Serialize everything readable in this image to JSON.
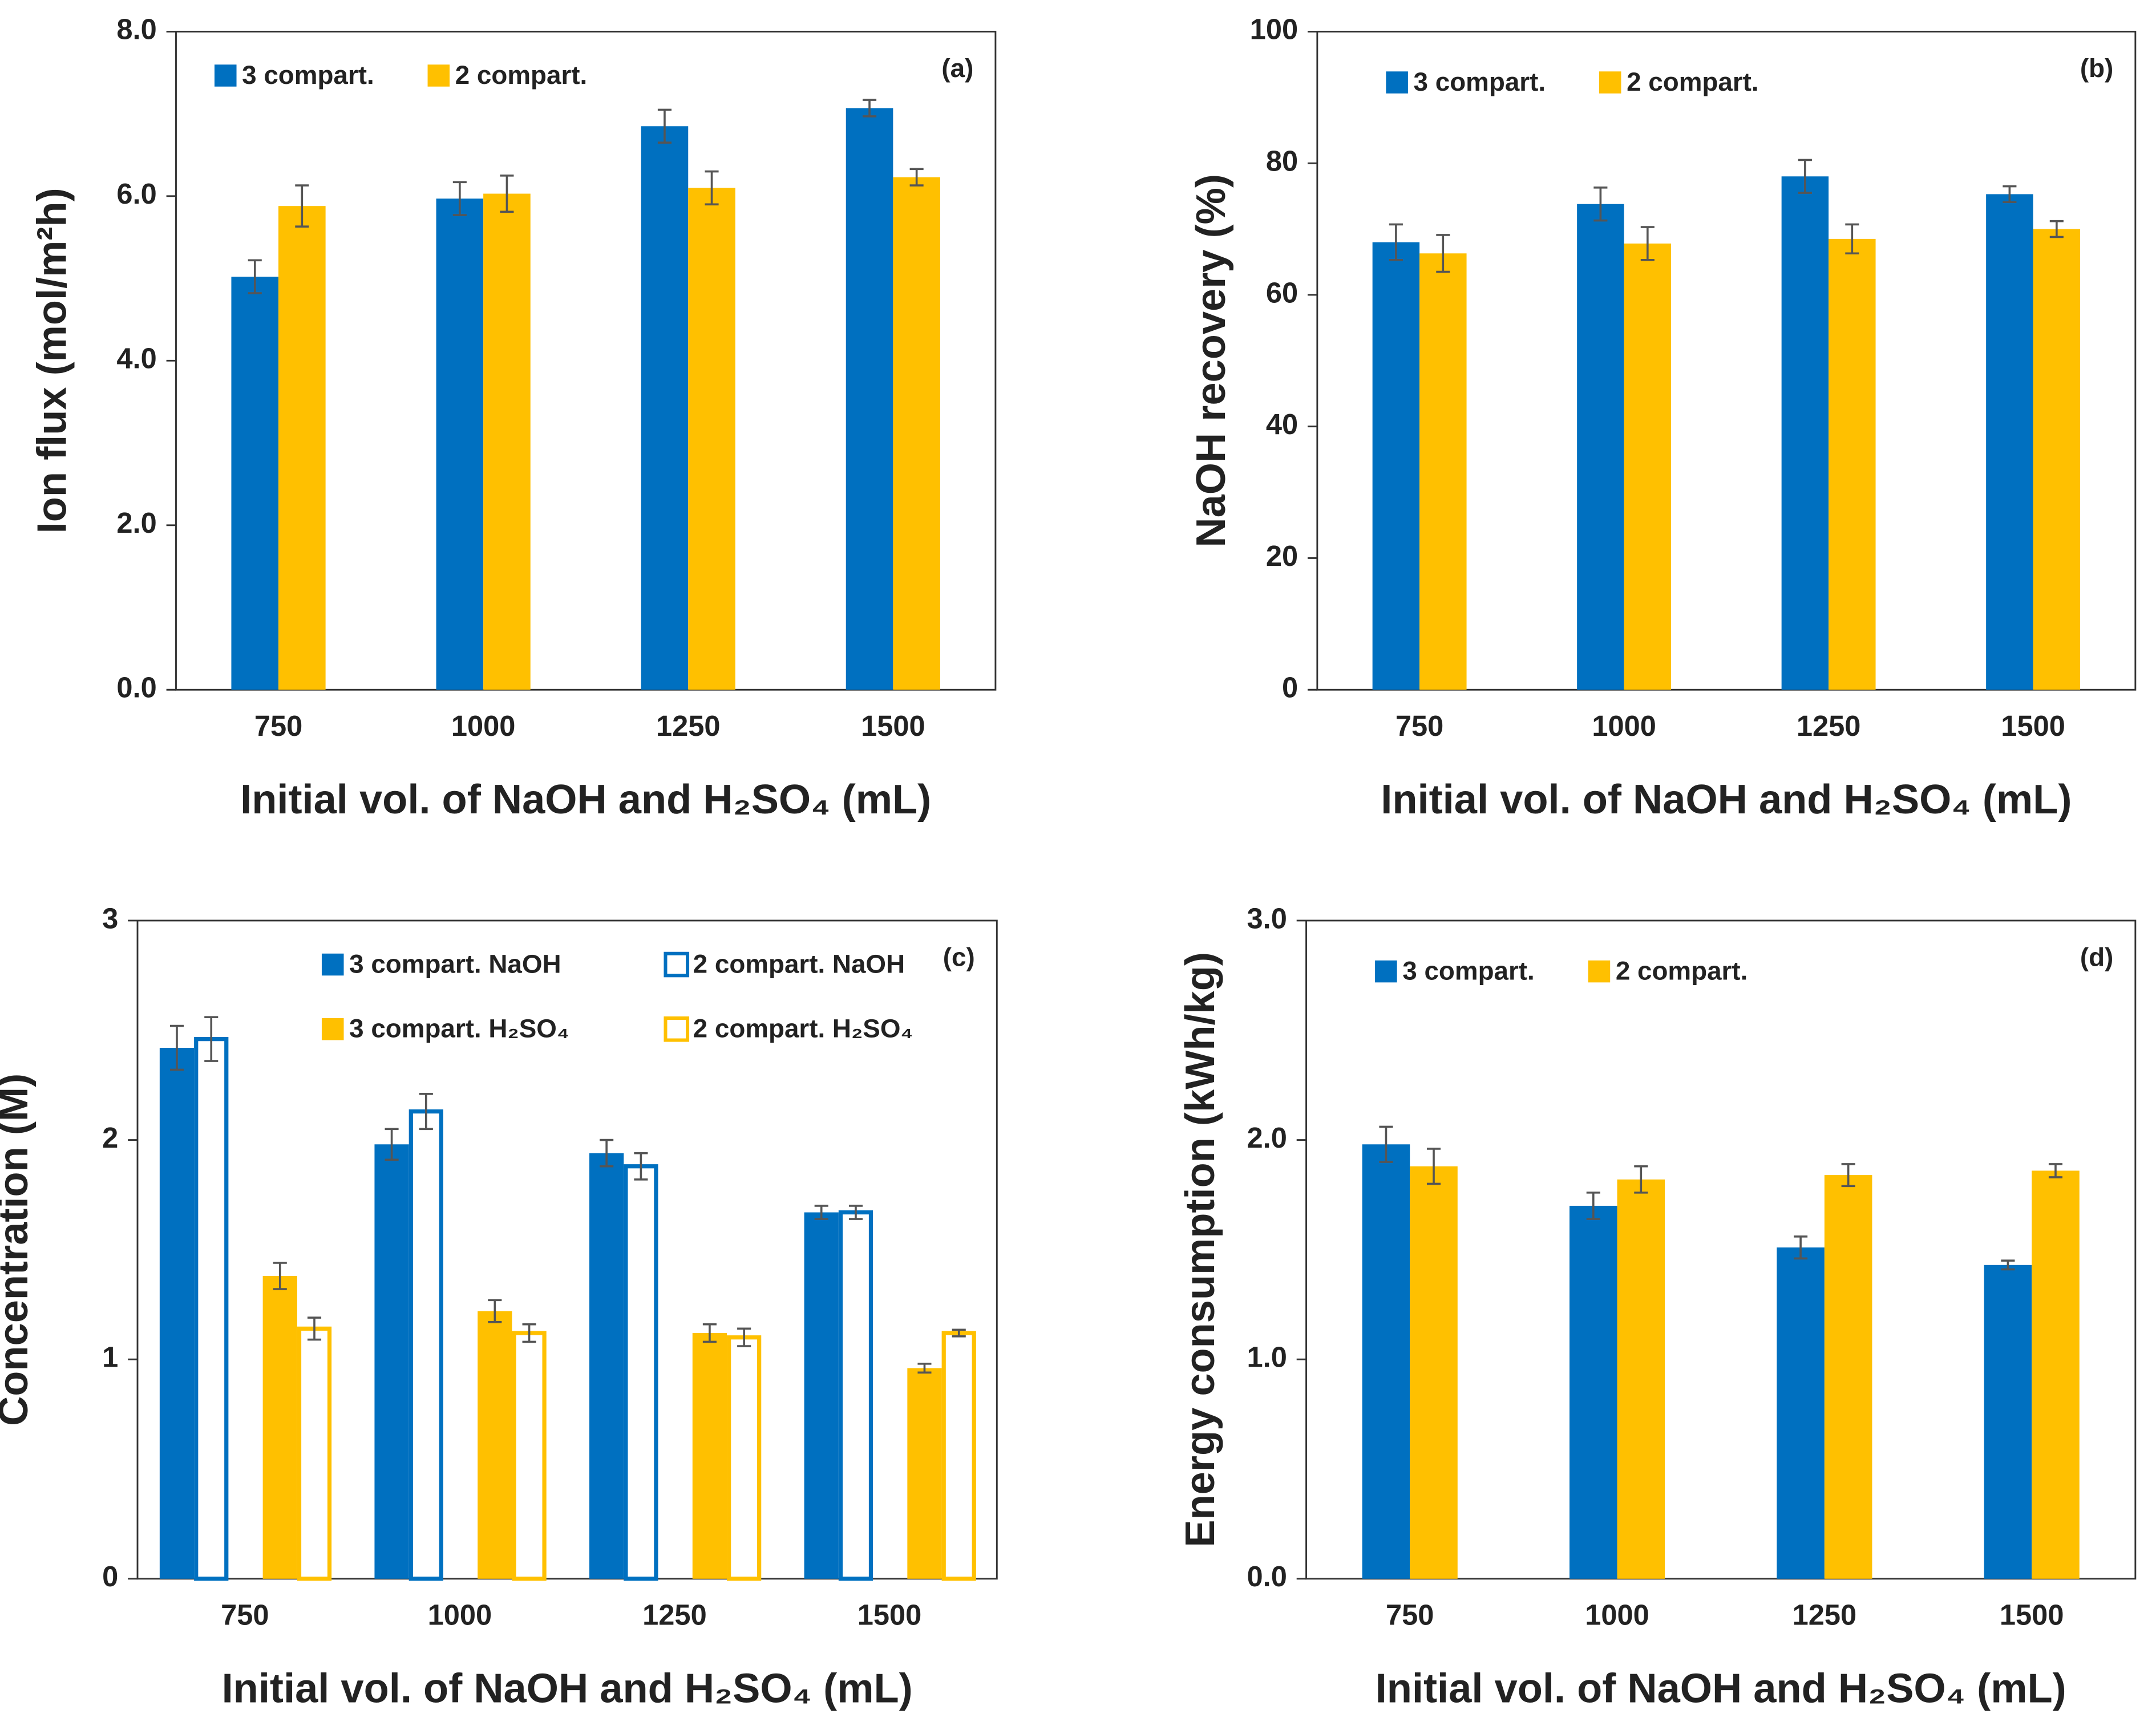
{
  "chart_data": [
    {
      "type": "bar",
      "panel_label": "(a)",
      "y_label": "Ion flux (mol/m²h)",
      "x_label": "Initial vol. of NaOH and H₂SO₄ (mL)",
      "categories": [
        "750",
        "1000",
        "1250",
        "1500"
      ],
      "series": [
        {
          "name": "3 compart.",
          "color": "#0070c0",
          "values": [
            5.02,
            5.97,
            6.85,
            7.07
          ],
          "errors": [
            0.2,
            0.2,
            0.2,
            0.1
          ]
        },
        {
          "name": "2 compart.",
          "color": "#ffc000",
          "values": [
            5.88,
            6.03,
            6.1,
            6.23
          ],
          "errors": [
            0.25,
            0.22,
            0.2,
            0.1
          ]
        }
      ],
      "ylim": [
        0,
        8
      ],
      "yticks": [
        {
          "value": 0,
          "label": "0.0"
        },
        {
          "value": 2,
          "label": "2.0"
        },
        {
          "value": 4,
          "label": "4.0"
        },
        {
          "value": 6,
          "label": "6.0"
        },
        {
          "value": 8,
          "label": "8.0"
        }
      ],
      "legend": "top-left"
    },
    {
      "type": "bar",
      "panel_label": "(b)",
      "y_label": "NaOH recovery (%)",
      "x_label": "Initial vol. of NaOH and H₂SO₄ (mL)",
      "categories": [
        "750",
        "1000",
        "1250",
        "1500"
      ],
      "series": [
        {
          "name": "3 compart.",
          "color": "#0070c0",
          "values": [
            68,
            73.8,
            78,
            75.3
          ],
          "errors": [
            2.7,
            2.5,
            2.5,
            1.2
          ]
        },
        {
          "name": "2 compart.",
          "color": "#ffc000",
          "values": [
            66.3,
            67.8,
            68.5,
            70
          ],
          "errors": [
            2.8,
            2.5,
            2.2,
            1.2
          ]
        }
      ],
      "ylim": [
        0,
        100
      ],
      "yticks": [
        0,
        20,
        40,
        60,
        80,
        100
      ],
      "legend": "top-left"
    },
    {
      "type": "bar",
      "panel_label": "(c)",
      "y_label": "Concentration (M)",
      "x_label": "Initial vol. of NaOH and H₂SO₄ (mL)",
      "categories": [
        "750",
        "1000",
        "1250",
        "1500"
      ],
      "series": [
        {
          "name": "3 compart. NaOH",
          "color": "#0070c0",
          "fill": "filled",
          "values": [
            2.42,
            1.98,
            1.94,
            1.67
          ],
          "errors": [
            0.1,
            0.07,
            0.06,
            0.03
          ]
        },
        {
          "name": "2 compart. NaOH",
          "color": "#0070c0",
          "fill": "hollow",
          "values": [
            2.46,
            2.13,
            1.88,
            1.67
          ],
          "errors": [
            0.1,
            0.08,
            0.06,
            0.03
          ]
        },
        {
          "name": "3 compart. H₂SO₄",
          "color": "#ffc000",
          "fill": "filled",
          "values": [
            1.38,
            1.22,
            1.12,
            0.96
          ],
          "errors": [
            0.06,
            0.05,
            0.04,
            0.02
          ]
        },
        {
          "name": "2 compart. H₂SO₄",
          "color": "#ffc000",
          "fill": "hollow",
          "values": [
            1.14,
            1.12,
            1.1,
            1.12
          ],
          "errors": [
            0.05,
            0.04,
            0.04,
            0.015
          ]
        }
      ],
      "ylim": [
        0,
        3
      ],
      "yticks": [
        0,
        1,
        2,
        3
      ],
      "legend": "top-right"
    },
    {
      "type": "bar",
      "panel_label": "(d)",
      "y_label": "Energy consumption (kWh/kg)",
      "x_label": "Initial vol. of NaOH and H₂SO₄ (mL)",
      "categories": [
        "750",
        "1000",
        "1250",
        "1500"
      ],
      "series": [
        {
          "name": "3 compart.",
          "color": "#0070c0",
          "values": [
            1.98,
            1.7,
            1.51,
            1.43
          ],
          "errors": [
            0.08,
            0.06,
            0.05,
            0.02
          ]
        },
        {
          "name": "2 compart.",
          "color": "#ffc000",
          "values": [
            1.88,
            1.82,
            1.84,
            1.86
          ],
          "errors": [
            0.08,
            0.06,
            0.05,
            0.03
          ]
        }
      ],
      "ylim": [
        0,
        3
      ],
      "yticks": [
        {
          "value": 0,
          "label": "0.0"
        },
        {
          "value": 1,
          "label": "1.0"
        },
        {
          "value": 2,
          "label": "2.0"
        },
        {
          "value": 3,
          "label": "3.0"
        }
      ],
      "legend": "top-left"
    }
  ]
}
